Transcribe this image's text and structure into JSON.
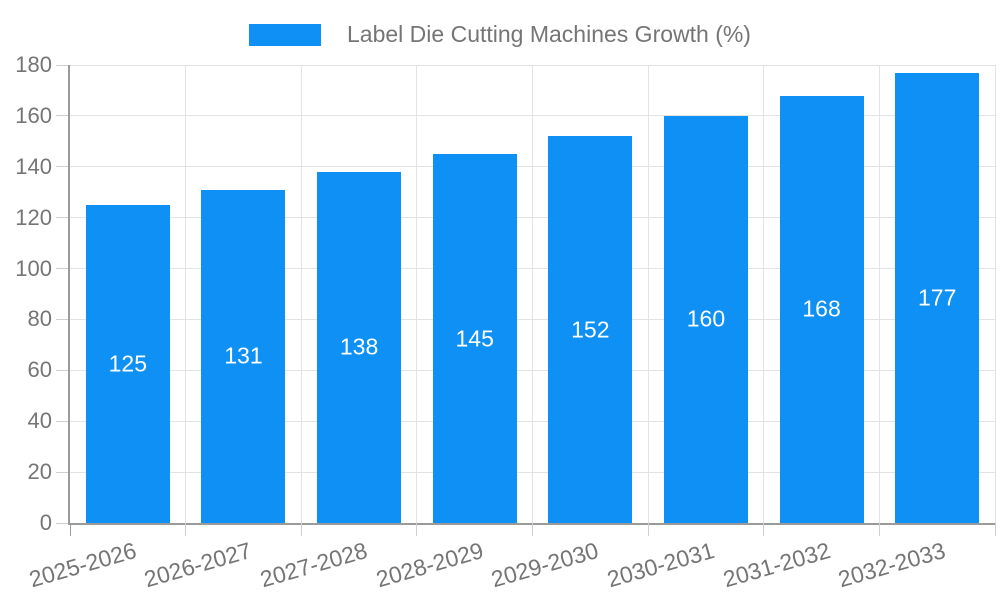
{
  "legend": {
    "label": "Label Die Cutting Machines Growth (%)"
  },
  "chart_data": {
    "type": "bar",
    "title": "Label Die Cutting Machines Growth (%)",
    "categories": [
      "2025-2026",
      "2026-2027",
      "2027-2028",
      "2028-2029",
      "2029-2030",
      "2030-2031",
      "2031-2032",
      "2032-2033"
    ],
    "values": [
      125,
      131,
      138,
      145,
      152,
      160,
      168,
      177
    ],
    "xlabel": "",
    "ylabel": "",
    "ylim": [
      0,
      180
    ],
    "ytick_step": 20,
    "yticks": [
      0,
      20,
      40,
      60,
      80,
      100,
      120,
      140,
      160,
      180
    ],
    "grid": true,
    "legend_position": "top",
    "value_labels": "inside-center",
    "x_label_rotation_deg": -16,
    "colors": {
      "bar": "#0E90F5",
      "value_label": "#FFFFFF",
      "axis": "#9A9A9A",
      "gridline": "#E3E3E3",
      "tick": "#CFCFCF",
      "text": "#757575",
      "background": "#FFFFFF"
    }
  }
}
